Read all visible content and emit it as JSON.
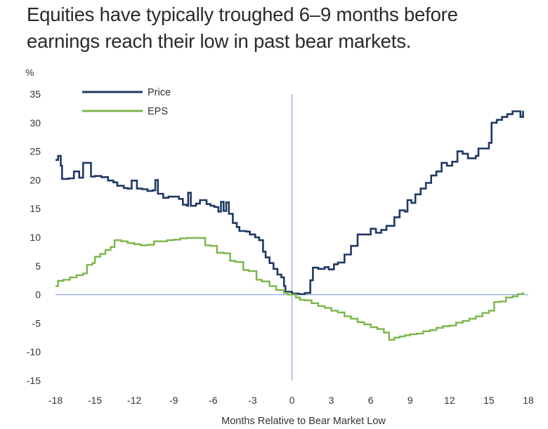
{
  "headline": {
    "line1": "Equities have typically troughed 6–9 months before",
    "line2": "earnings reach their low in past bear markets."
  },
  "chart_data": {
    "type": "line",
    "unit_label": "%",
    "xlabel": "Months Relative to Bear Market Low",
    "ylabel": "",
    "xlim": [
      -18,
      18
    ],
    "ylim": [
      -15,
      35
    ],
    "xticks": [
      -18,
      -15,
      -12,
      -9,
      -6,
      -3,
      0,
      3,
      6,
      9,
      12,
      15,
      18
    ],
    "yticks": [
      35,
      30,
      25,
      20,
      15,
      10,
      5,
      0,
      -5,
      -10,
      -15
    ],
    "x_tick_labels": [
      "-18",
      "-15",
      "-12",
      "-9",
      "-6",
      "-3",
      "0",
      "3",
      "6",
      "9",
      "12",
      "15",
      "18"
    ],
    "y_tick_labels": [
      "35",
      "30",
      "25",
      "20",
      "15",
      "10",
      "5",
      "0",
      "-5",
      "-10",
      "-15"
    ],
    "grid": false,
    "legend_position": "top-left",
    "colors": {
      "price": "#1f3864",
      "eps": "#7ab648",
      "reference": "#8faadc"
    },
    "series": [
      {
        "name": "Price",
        "color": "#1f3864",
        "points": [
          [
            -18,
            23.5
          ],
          [
            -17.8,
            24.2
          ],
          [
            -17.6,
            22.5
          ],
          [
            -17.5,
            20.2
          ],
          [
            -17,
            20.3
          ],
          [
            -16.6,
            21.5
          ],
          [
            -16.2,
            20.4
          ],
          [
            -15.9,
            23
          ],
          [
            -15.5,
            23
          ],
          [
            -15.3,
            20.6
          ],
          [
            -15,
            20.7
          ],
          [
            -14.5,
            20.5
          ],
          [
            -14,
            19.9
          ],
          [
            -13.6,
            19.6
          ],
          [
            -13.3,
            19
          ],
          [
            -12.8,
            18.6
          ],
          [
            -12.5,
            18.5
          ],
          [
            -12.2,
            19.9
          ],
          [
            -11.8,
            18.5
          ],
          [
            -11.4,
            18.4
          ],
          [
            -11,
            18.1
          ],
          [
            -10.6,
            18.2
          ],
          [
            -10.4,
            20
          ],
          [
            -10.2,
            17.6
          ],
          [
            -9.8,
            16.9
          ],
          [
            -9.4,
            17.1
          ],
          [
            -9,
            17.1
          ],
          [
            -8.6,
            16.7
          ],
          [
            -8.3,
            15.7
          ],
          [
            -8,
            15.5
          ],
          [
            -7.9,
            17.8
          ],
          [
            -7.7,
            15.5
          ],
          [
            -7.3,
            15.9
          ],
          [
            -7,
            16.5
          ],
          [
            -6.5,
            15.8
          ],
          [
            -6.2,
            15.5
          ],
          [
            -5.9,
            15.3
          ],
          [
            -5.6,
            14.5
          ],
          [
            -5.4,
            16.2
          ],
          [
            -5.2,
            14.6
          ],
          [
            -5,
            16.1
          ],
          [
            -4.8,
            14.1
          ],
          [
            -4.5,
            12.5
          ],
          [
            -4.2,
            11.8
          ],
          [
            -4,
            11.1
          ],
          [
            -3.5,
            11
          ],
          [
            -3.2,
            10.5
          ],
          [
            -2.8,
            10
          ],
          [
            -2.5,
            9.5
          ],
          [
            -2.2,
            7.5
          ],
          [
            -2,
            6.5
          ],
          [
            -1.7,
            5.5
          ],
          [
            -1.4,
            4.5
          ],
          [
            -1.1,
            3.5
          ],
          [
            -0.8,
            3
          ],
          [
            -0.6,
            1.5
          ],
          [
            -0.5,
            0.5
          ],
          [
            0,
            0.2
          ],
          [
            0.5,
            0.1
          ],
          [
            1,
            0.3
          ],
          [
            1.4,
            2.5
          ],
          [
            1.6,
            4.7
          ],
          [
            2,
            4.5
          ],
          [
            2.5,
            4.8
          ],
          [
            2.8,
            4.4
          ],
          [
            3.2,
            5.3
          ],
          [
            3.5,
            5.6
          ],
          [
            4,
            7
          ],
          [
            4.5,
            8.5
          ],
          [
            5,
            10.5
          ],
          [
            5.6,
            10.5
          ],
          [
            6,
            11.5
          ],
          [
            6.4,
            10.8
          ],
          [
            6.8,
            11.3
          ],
          [
            7.2,
            12
          ],
          [
            7.6,
            12
          ],
          [
            7.8,
            13.5
          ],
          [
            8.2,
            14.7
          ],
          [
            8.6,
            14.5
          ],
          [
            8.8,
            16.5
          ],
          [
            9.1,
            16
          ],
          [
            9.4,
            17.5
          ],
          [
            9.8,
            18.5
          ],
          [
            10.2,
            19.5
          ],
          [
            10.6,
            20.8
          ],
          [
            11,
            21.5
          ],
          [
            11.4,
            23
          ],
          [
            11.8,
            22.5
          ],
          [
            12.2,
            23.2
          ],
          [
            12.6,
            25
          ],
          [
            13,
            24.6
          ],
          [
            13.4,
            23.8
          ],
          [
            14,
            24.2
          ],
          [
            14.2,
            25.5
          ],
          [
            14.6,
            25.5
          ],
          [
            15,
            26.5
          ],
          [
            15.2,
            30
          ],
          [
            15.6,
            30.5
          ],
          [
            16,
            31
          ],
          [
            16.4,
            31.5
          ],
          [
            16.8,
            32
          ],
          [
            17.2,
            32
          ],
          [
            17.4,
            31
          ],
          [
            17.6,
            32.1
          ]
        ]
      },
      {
        "name": "EPS",
        "color": "#7ab648",
        "points": [
          [
            -18,
            1.5
          ],
          [
            -17.8,
            2.4
          ],
          [
            -17.4,
            2.6
          ],
          [
            -16.9,
            3
          ],
          [
            -16.4,
            3.4
          ],
          [
            -15.9,
            3.7
          ],
          [
            -15.6,
            5.2
          ],
          [
            -15.2,
            5.5
          ],
          [
            -15,
            6.6
          ],
          [
            -14.6,
            7.1
          ],
          [
            -14.2,
            7.8
          ],
          [
            -13.8,
            8.3
          ],
          [
            -13.5,
            9.5
          ],
          [
            -13,
            9.3
          ],
          [
            -12.5,
            9
          ],
          [
            -12,
            8.8
          ],
          [
            -11.5,
            8.6
          ],
          [
            -11,
            8.7
          ],
          [
            -10.5,
            9.3
          ],
          [
            -10,
            9.3
          ],
          [
            -9.5,
            9.5
          ],
          [
            -9,
            9.6
          ],
          [
            -8.5,
            9.8
          ],
          [
            -8,
            9.9
          ],
          [
            -7.5,
            9.9
          ],
          [
            -7,
            9.9
          ],
          [
            -6.6,
            8.6
          ],
          [
            -6.2,
            8.5
          ],
          [
            -5.7,
            7.3
          ],
          [
            -5.2,
            7.2
          ],
          [
            -4.7,
            5.9
          ],
          [
            -4.3,
            5.7
          ],
          [
            -3.7,
            4.3
          ],
          [
            -3.3,
            4.1
          ],
          [
            -2.7,
            2.6
          ],
          [
            -2.3,
            2.3
          ],
          [
            -1.7,
            1.5
          ],
          [
            -1.2,
            0.8
          ],
          [
            -0.6,
            0.3
          ],
          [
            -0.3,
            0
          ],
          [
            0.3,
            -0.5
          ],
          [
            0.6,
            -0.9
          ],
          [
            1,
            -1
          ],
          [
            1.5,
            -1.5
          ],
          [
            2,
            -2
          ],
          [
            2.5,
            -2.3
          ],
          [
            3,
            -2.8
          ],
          [
            3.5,
            -3.1
          ],
          [
            4,
            -3.8
          ],
          [
            4.5,
            -4.2
          ],
          [
            5,
            -4.8
          ],
          [
            5.5,
            -5.2
          ],
          [
            6,
            -5.7
          ],
          [
            6.5,
            -6
          ],
          [
            7,
            -6.6
          ],
          [
            7.4,
            -7.9
          ],
          [
            7.8,
            -7.5
          ],
          [
            8.2,
            -7.3
          ],
          [
            8.6,
            -7.1
          ],
          [
            9,
            -6.9
          ],
          [
            9.5,
            -6.8
          ],
          [
            10,
            -6.4
          ],
          [
            10.5,
            -6.2
          ],
          [
            11,
            -5.8
          ],
          [
            11.5,
            -5.5
          ],
          [
            12,
            -5.4
          ],
          [
            12.5,
            -4.9
          ],
          [
            13,
            -4.6
          ],
          [
            13.5,
            -4.2
          ],
          [
            14,
            -3.8
          ],
          [
            14.5,
            -3.2
          ],
          [
            15,
            -2.8
          ],
          [
            15.4,
            -1.3
          ],
          [
            15.8,
            -1.2
          ],
          [
            16.3,
            -0.5
          ],
          [
            16.8,
            -0.3
          ],
          [
            17.2,
            0.1
          ],
          [
            17.6,
            0.4
          ]
        ]
      }
    ]
  }
}
